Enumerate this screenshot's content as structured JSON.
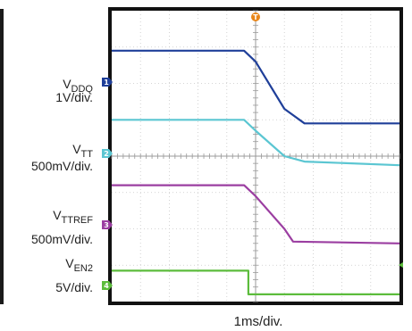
{
  "chart_data": {
    "type": "line",
    "title": "",
    "xlabel": "1ms/div.",
    "ylabel": "",
    "xlim": [
      0,
      10
    ],
    "x_unit": "ms",
    "grid": true,
    "trigger_marker": "T",
    "series": [
      {
        "name": "V",
        "name_sub": "DDQ",
        "scale": "1V/div.",
        "channel": "1",
        "color": "#1f3f99",
        "points": [
          [
            0,
            6.9
          ],
          [
            4.6,
            6.9
          ],
          [
            5.0,
            6.6
          ],
          [
            6.0,
            5.3
          ],
          [
            6.7,
            4.9
          ],
          [
            10,
            4.9
          ]
        ]
      },
      {
        "name": "V",
        "name_sub": "TT",
        "scale": "500mV/div.",
        "channel": "2",
        "color": "#5bc6d2",
        "points": [
          [
            0,
            5.0
          ],
          [
            4.6,
            5.0
          ],
          [
            5.0,
            4.7
          ],
          [
            6.0,
            4.0
          ],
          [
            6.7,
            3.85
          ],
          [
            10,
            3.75
          ]
        ]
      },
      {
        "name": "V",
        "name_sub": "TTREF",
        "scale": "500mV/div.",
        "channel": "3",
        "color": "#9b3ea1",
        "points": [
          [
            0,
            3.2
          ],
          [
            4.6,
            3.2
          ],
          [
            5.0,
            2.9
          ],
          [
            6.0,
            2.0
          ],
          [
            6.3,
            1.65
          ],
          [
            10,
            1.6
          ]
        ]
      },
      {
        "name": "V",
        "name_sub": "EN2",
        "scale": "5V/div.",
        "channel": "4",
        "color": "#5cbc3c",
        "points": [
          [
            0,
            0.85
          ],
          [
            4.75,
            0.85
          ],
          [
            4.75,
            0.2
          ],
          [
            10,
            0.2
          ]
        ]
      }
    ]
  }
}
